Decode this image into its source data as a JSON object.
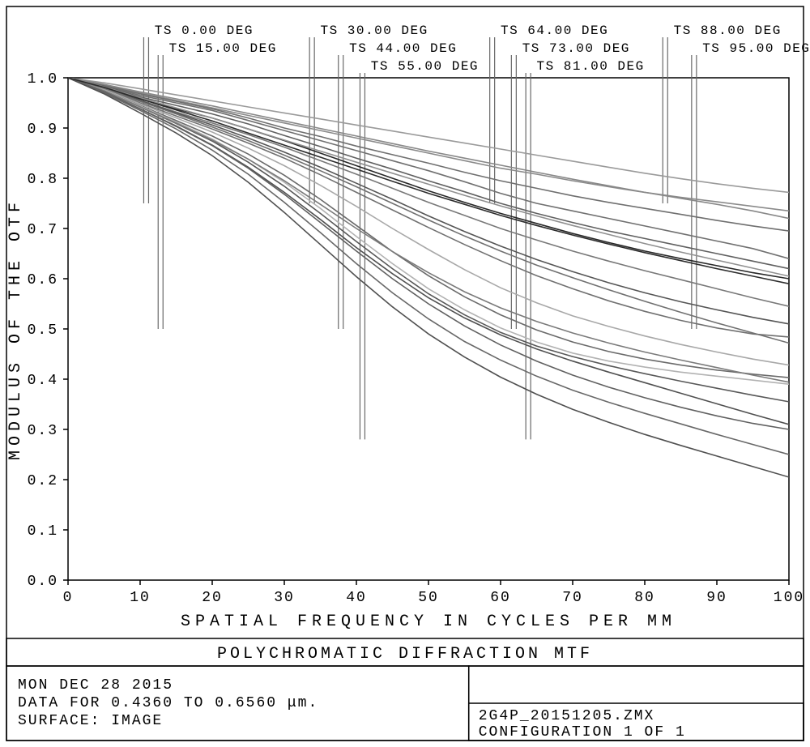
{
  "chart": {
    "type": "line",
    "title": "POLYCHROMATIC DIFFRACTION MTF",
    "xlabel": "SPATIAL FREQUENCY IN CYCLES PER MM",
    "ylabel": "MODULUS OF THE OTF",
    "xlim": [
      0,
      100
    ],
    "ylim": [
      0.0,
      1.0
    ],
    "xtick_step": 10,
    "ytick_step": 0.1,
    "xticks": [
      "0",
      "10",
      "20",
      "30",
      "40",
      "50",
      "60",
      "70",
      "80",
      "90",
      "100"
    ],
    "yticks": [
      "0.0",
      "0.1",
      "0.2",
      "0.3",
      "0.4",
      "0.5",
      "0.6",
      "0.7",
      "0.8",
      "0.9",
      "1.0"
    ],
    "background_color": "#ffffff",
    "axis_color": "#000000",
    "tick_fontsize": 18,
    "label_fontsize": 20,
    "label_letter_spacing": 6,
    "ts_labels": [
      {
        "text": "TS 0.00 DEG",
        "x": 12,
        "line_x": 10.5,
        "row": 0
      },
      {
        "text": "TS 15.00 DEG",
        "x": 14,
        "line_x": 12.5,
        "row": 1
      },
      {
        "text": "TS 30.00 DEG",
        "x": 35,
        "line_x": 33.5,
        "row": 0
      },
      {
        "text": "TS 44.00 DEG",
        "x": 39,
        "line_x": 37.5,
        "row": 1
      },
      {
        "text": "TS 55.00 DEG",
        "x": 42,
        "line_x": 40.5,
        "row": 2
      },
      {
        "text": "TS 64.00 DEG",
        "x": 60,
        "line_x": 58.5,
        "row": 0
      },
      {
        "text": "TS 73.00 DEG",
        "x": 63,
        "line_x": 61.5,
        "row": 1
      },
      {
        "text": "TS 81.00 DEG",
        "x": 65,
        "line_x": 63.5,
        "row": 2
      },
      {
        "text": "TS 88.00 DEG",
        "x": 84,
        "line_x": 82.5,
        "row": 0
      },
      {
        "text": "TS 95.00 DEG",
        "x": 88,
        "line_x": 86.5,
        "row": 1
      }
    ],
    "ts_label_fontsize": 16,
    "series": [
      {
        "color": "#707070",
        "values": [
          1.0,
          0.984,
          0.965,
          0.95,
          0.935,
          0.915,
          0.895,
          0.875,
          0.855,
          0.835,
          0.815,
          0.793,
          0.77,
          0.75,
          0.735,
          0.72,
          0.705,
          0.69,
          0.675,
          0.66,
          0.64
        ]
      },
      {
        "color": "#8a8a8a",
        "values": [
          1.0,
          0.986,
          0.97,
          0.955,
          0.94,
          0.925,
          0.91,
          0.895,
          0.88,
          0.865,
          0.85,
          0.835,
          0.82,
          0.808,
          0.795,
          0.783,
          0.772,
          0.762,
          0.753,
          0.744,
          0.735
        ]
      },
      {
        "color": "#6f6f6f",
        "values": [
          1.0,
          0.985,
          0.968,
          0.953,
          0.938,
          0.92,
          0.9,
          0.883,
          0.864,
          0.847,
          0.83,
          0.812,
          0.795,
          0.78,
          0.765,
          0.752,
          0.74,
          0.728,
          0.716,
          0.705,
          0.695
        ]
      },
      {
        "color": "#9a9a9a",
        "values": [
          1.0,
          0.99,
          0.978,
          0.966,
          0.954,
          0.942,
          0.93,
          0.918,
          0.906,
          0.894,
          0.882,
          0.87,
          0.858,
          0.846,
          0.834,
          0.822,
          0.81,
          0.799,
          0.789,
          0.78,
          0.772
        ]
      },
      {
        "color": "#606060",
        "values": [
          1.0,
          0.983,
          0.962,
          0.945,
          0.928,
          0.908,
          0.885,
          0.863,
          0.84,
          0.818,
          0.795,
          0.773,
          0.75,
          0.73,
          0.712,
          0.695,
          0.68,
          0.665,
          0.65,
          0.635,
          0.62
        ]
      },
      {
        "color": "#888888",
        "values": [
          1.0,
          0.987,
          0.972,
          0.958,
          0.944,
          0.929,
          0.914,
          0.899,
          0.884,
          0.869,
          0.854,
          0.84,
          0.826,
          0.812,
          0.798,
          0.785,
          0.772,
          0.76,
          0.748,
          0.735,
          0.72
        ]
      },
      {
        "color": "#282828",
        "values": [
          1.0,
          0.98,
          0.958,
          0.938,
          0.92,
          0.898,
          0.875,
          0.85,
          0.825,
          0.8,
          0.775,
          0.752,
          0.73,
          0.71,
          0.69,
          0.672,
          0.655,
          0.64,
          0.626,
          0.612,
          0.6
        ]
      },
      {
        "color": "#787878",
        "values": [
          1.0,
          0.98,
          0.955,
          0.932,
          0.91,
          0.887,
          0.862,
          0.835,
          0.808,
          0.78,
          0.752,
          0.726,
          0.7,
          0.677,
          0.655,
          0.635,
          0.616,
          0.598,
          0.58,
          0.562,
          0.545
        ]
      },
      {
        "color": "#555555",
        "values": [
          1.0,
          0.98,
          0.955,
          0.93,
          0.906,
          0.88,
          0.852,
          0.822,
          0.79,
          0.758,
          0.725,
          0.694,
          0.665,
          0.638,
          0.614,
          0.592,
          0.572,
          0.554,
          0.538,
          0.523,
          0.51
        ]
      },
      {
        "color": "#707070",
        "values": [
          1.0,
          0.978,
          0.95,
          0.924,
          0.898,
          0.87,
          0.84,
          0.807,
          0.772,
          0.737,
          0.702,
          0.668,
          0.636,
          0.606,
          0.58,
          0.556,
          0.535,
          0.517,
          0.502,
          0.49,
          0.484
        ]
      },
      {
        "color": "#a8a8a8",
        "values": [
          1.0,
          0.977,
          0.948,
          0.92,
          0.892,
          0.86,
          0.825,
          0.786,
          0.744,
          0.7,
          0.658,
          0.618,
          0.582,
          0.552,
          0.526,
          0.505,
          0.486,
          0.469,
          0.454,
          0.44,
          0.428
        ]
      },
      {
        "color": "#6a6a6a",
        "values": [
          1.0,
          0.975,
          0.945,
          0.915,
          0.884,
          0.848,
          0.806,
          0.758,
          0.706,
          0.654,
          0.606,
          0.564,
          0.528,
          0.498,
          0.474,
          0.455,
          0.44,
          0.428,
          0.418,
          0.41,
          0.403
        ]
      },
      {
        "color": "#b2b2b2",
        "values": [
          1.0,
          0.975,
          0.944,
          0.912,
          0.878,
          0.838,
          0.792,
          0.74,
          0.684,
          0.63,
          0.58,
          0.538,
          0.502,
          0.474,
          0.452,
          0.436,
          0.424,
          0.414,
          0.406,
          0.398,
          0.39
        ]
      },
      {
        "color": "#585858",
        "values": [
          1.0,
          0.974,
          0.942,
          0.909,
          0.874,
          0.832,
          0.784,
          0.73,
          0.674,
          0.62,
          0.57,
          0.528,
          0.493,
          0.466,
          0.445,
          0.427,
          0.411,
          0.396,
          0.382,
          0.368,
          0.355
        ]
      },
      {
        "color": "#7a7a7a",
        "values": [
          1.0,
          0.974,
          0.942,
          0.91,
          0.876,
          0.838,
          0.795,
          0.748,
          0.7,
          0.654,
          0.612,
          0.574,
          0.542,
          0.515,
          0.492,
          0.472,
          0.454,
          0.438,
          0.423,
          0.408,
          0.394
        ]
      },
      {
        "color": "#505050",
        "values": [
          1.0,
          0.972,
          0.938,
          0.904,
          0.866,
          0.822,
          0.772,
          0.718,
          0.662,
          0.61,
          0.562,
          0.522,
          0.488,
          0.46,
          0.436,
          0.414,
          0.393,
          0.372,
          0.351,
          0.33,
          0.31
        ]
      },
      {
        "color": "#606060",
        "values": [
          1.0,
          0.972,
          0.938,
          0.903,
          0.865,
          0.82,
          0.768,
          0.712,
          0.655,
          0.6,
          0.55,
          0.506,
          0.468,
          0.436,
          0.408,
          0.384,
          0.363,
          0.344,
          0.327,
          0.312,
          0.3
        ]
      },
      {
        "color": "#686868",
        "values": [
          1.0,
          0.97,
          0.935,
          0.898,
          0.856,
          0.808,
          0.752,
          0.692,
          0.63,
          0.572,
          0.52,
          0.475,
          0.438,
          0.406,
          0.378,
          0.354,
          0.332,
          0.311,
          0.29,
          0.27,
          0.25
        ]
      },
      {
        "color": "#505050",
        "values": [
          1.0,
          0.968,
          0.93,
          0.89,
          0.845,
          0.792,
          0.732,
          0.668,
          0.604,
          0.544,
          0.49,
          0.444,
          0.404,
          0.37,
          0.34,
          0.314,
          0.29,
          0.268,
          0.247,
          0.226,
          0.205
        ]
      },
      {
        "color": "#707070",
        "values": [
          1.0,
          0.979,
          0.953,
          0.928,
          0.902,
          0.875,
          0.846,
          0.815,
          0.783,
          0.75,
          0.717,
          0.685,
          0.655,
          0.627,
          0.602,
          0.578,
          0.555,
          0.533,
          0.512,
          0.492,
          0.472
        ]
      },
      {
        "color": "#909090",
        "values": [
          1.0,
          0.982,
          0.96,
          0.94,
          0.92,
          0.898,
          0.876,
          0.854,
          0.832,
          0.81,
          0.788,
          0.766,
          0.745,
          0.725,
          0.706,
          0.688,
          0.67,
          0.653,
          0.637,
          0.621,
          0.605
        ]
      },
      {
        "color": "#2c2c2c",
        "values": [
          1.0,
          0.981,
          0.958,
          0.936,
          0.914,
          0.89,
          0.866,
          0.842,
          0.818,
          0.794,
          0.77,
          0.748,
          0.726,
          0.706,
          0.687,
          0.669,
          0.652,
          0.636,
          0.62,
          0.605,
          0.59
        ]
      }
    ]
  },
  "footer": {
    "date": "MON DEC 28 2015",
    "data_range": "DATA FOR 0.4360 TO 0.6560 μm.",
    "surface": "SURFACE: IMAGE",
    "filename": "2G4P_20151205.ZMX",
    "config": "CONFIGURATION 1 OF 1"
  }
}
